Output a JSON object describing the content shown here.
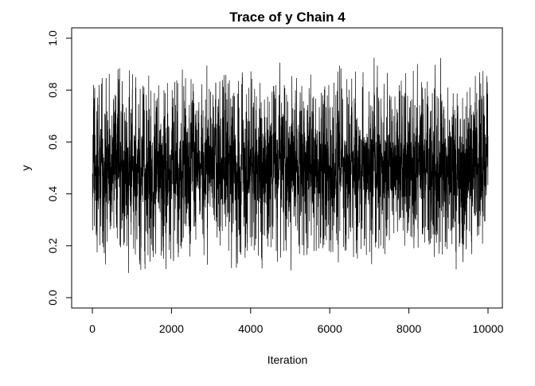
{
  "chart_data": {
    "type": "line",
    "title": "Trace of y Chain 4",
    "xlabel": "Iteration",
    "ylabel": "y",
    "x_ticks": [
      "0",
      "2000",
      "4000",
      "6000",
      "8000",
      "10000"
    ],
    "y_ticks": [
      "0.0",
      "0.2",
      "0.4",
      "0.6",
      "0.8",
      "1.0"
    ],
    "xlim": [
      0,
      10000
    ],
    "ylim": [
      0,
      1
    ],
    "grid": false,
    "series": [
      {
        "color": "#000000",
        "description_of_values": "MCMC trace of y over 10000 iterations, oscillating rapidly between about 0.01 and 0.99 with most mass between 0.2 and 0.8, centered near 0.5",
        "x_start": 1,
        "x_end": 10000,
        "min": 0.005,
        "max": 0.99,
        "center": 0.5
      }
    ]
  }
}
